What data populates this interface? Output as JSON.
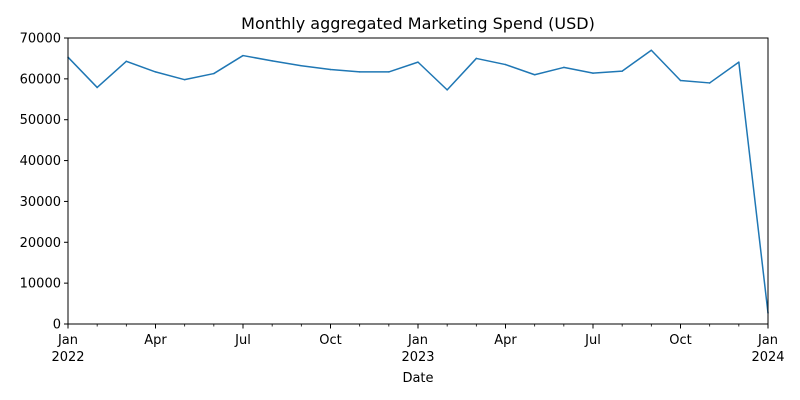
{
  "chart_data": {
    "type": "line",
    "title": "Monthly aggregated Marketing Spend (USD)",
    "xlabel": "Date",
    "ylabel": "",
    "ylim": [
      0,
      70000
    ],
    "grid": false,
    "legend": "none",
    "x": [
      "2022-01",
      "2022-02",
      "2022-03",
      "2022-04",
      "2022-05",
      "2022-06",
      "2022-07",
      "2022-08",
      "2022-09",
      "2022-10",
      "2022-11",
      "2022-12",
      "2023-01",
      "2023-02",
      "2023-03",
      "2023-04",
      "2023-05",
      "2023-06",
      "2023-07",
      "2023-08",
      "2023-09",
      "2023-10",
      "2023-11",
      "2023-12",
      "2024-01"
    ],
    "series": [
      {
        "color": "#1f77b4",
        "values": [
          65300,
          57900,
          64300,
          61700,
          59800,
          61300,
          65700,
          64400,
          63200,
          62300,
          61700,
          61700,
          64100,
          57300,
          65000,
          63500,
          61000,
          62800,
          61400,
          61900,
          67000,
          59600,
          59000,
          64100,
          2700
        ]
      }
    ],
    "y_ticks": [
      "0",
      "10000",
      "20000",
      "30000",
      "40000",
      "50000",
      "60000",
      "70000"
    ],
    "x_major_ticks": [
      {
        "x": "2022-01",
        "label": "Jan",
        "sublabel": "2022"
      },
      {
        "x": "2022-04",
        "label": "Apr",
        "sublabel": ""
      },
      {
        "x": "2022-07",
        "label": "Jul",
        "sublabel": ""
      },
      {
        "x": "2022-10",
        "label": "Oct",
        "sublabel": ""
      },
      {
        "x": "2023-01",
        "label": "Jan",
        "sublabel": "2023"
      },
      {
        "x": "2023-04",
        "label": "Apr",
        "sublabel": ""
      },
      {
        "x": "2023-07",
        "label": "Jul",
        "sublabel": ""
      },
      {
        "x": "2023-10",
        "label": "Oct",
        "sublabel": ""
      },
      {
        "x": "2024-01",
        "label": "Jan",
        "sublabel": "2024"
      }
    ]
  }
}
